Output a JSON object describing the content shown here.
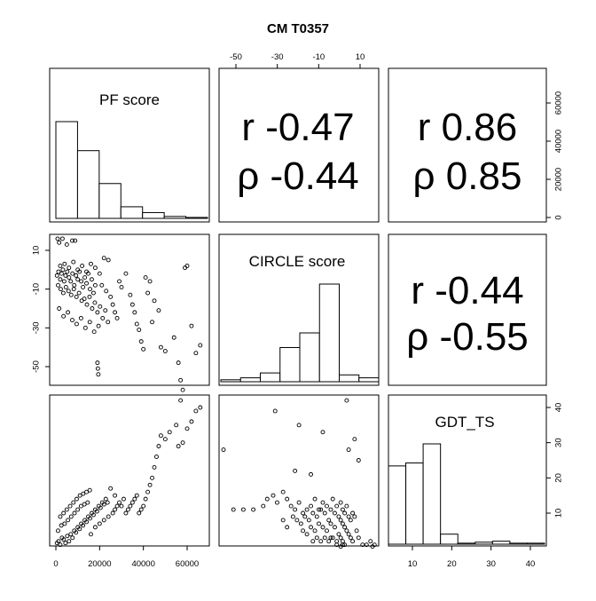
{
  "title": "CM T0357",
  "chart_data": {
    "type": "scatter-matrix",
    "title": "CM T0357",
    "variables": [
      "PF score",
      "CIRCLE score",
      "GDT_TS"
    ],
    "ticks": {
      "pf": [
        0,
        20000,
        40000,
        60000
      ],
      "circle": [
        -50,
        -30,
        -10,
        10
      ],
      "gdt": [
        10,
        20,
        30,
        40
      ]
    },
    "tick_labels": {
      "pf": [
        "0",
        "20000",
        "40000",
        "60000"
      ],
      "circle_top": [
        "-50",
        "-30",
        "-10",
        "10"
      ],
      "circle_left": [
        "10",
        "-10",
        "-30",
        "-50"
      ],
      "gdt_right": [
        "10",
        "20",
        "30",
        "40"
      ],
      "gdt_bottom": [
        "10",
        "20",
        "30",
        "40"
      ],
      "pf_right": [
        "0",
        "20000",
        "40000",
        "60000"
      ]
    },
    "correlations": [
      {
        "pair": "PF score / CIRCLE score",
        "r_text": "r -0.47",
        "rho_text": "ρ -0.44"
      },
      {
        "pair": "PF score / GDT_TS",
        "r_text": "r 0.86",
        "rho_text": "ρ 0.85"
      },
      {
        "pair": "CIRCLE score / GDT_TS",
        "r_text": "r -0.44",
        "rho_text": "ρ -0.55"
      }
    ],
    "histograms": {
      "pf": {
        "edges": [
          0,
          10000,
          20000,
          30000,
          40000,
          50000,
          60000,
          70000
        ],
        "heights": [
          1.0,
          0.7,
          0.36,
          0.12,
          0.06,
          0.02,
          0.01
        ]
      },
      "circle": {
        "edges": [
          -60,
          -50,
          -40,
          -30,
          -20,
          -10,
          0,
          10,
          20
        ],
        "heights": [
          0.02,
          0.04,
          0.09,
          0.35,
          0.5,
          1.0,
          0.07,
          0.04
        ]
      },
      "gdt": {
        "edges": [
          0,
          5,
          10,
          15,
          20,
          25,
          30,
          35,
          40,
          45
        ],
        "heights": [
          0.78,
          0.81,
          1.0,
          0.1,
          0.01,
          0.02,
          0.03,
          0.01,
          0.01
        ]
      }
    },
    "points_pf_circle": [
      [
        800,
        16
      ],
      [
        3000,
        16
      ],
      [
        7500,
        15
      ],
      [
        8800,
        15
      ],
      [
        1500,
        14
      ],
      [
        5000,
        13
      ],
      [
        500,
        -3
      ],
      [
        1200,
        -1
      ],
      [
        2000,
        -5
      ],
      [
        2600,
        -2
      ],
      [
        3200,
        0
      ],
      [
        3800,
        -6
      ],
      [
        4400,
        -3
      ],
      [
        5200,
        -1
      ],
      [
        6000,
        -4
      ],
      [
        6800,
        -6
      ],
      [
        7600,
        -2
      ],
      [
        8400,
        -8
      ],
      [
        9200,
        -3
      ],
      [
        10000,
        -5
      ],
      [
        10800,
        -1
      ],
      [
        11600,
        -6
      ],
      [
        12400,
        -9
      ],
      [
        13200,
        -4
      ],
      [
        14000,
        -7
      ],
      [
        14800,
        -2
      ],
      [
        15600,
        -10
      ],
      [
        16400,
        -5
      ],
      [
        17200,
        -12
      ],
      [
        18000,
        -8
      ],
      [
        1000,
        -8
      ],
      [
        2200,
        -10
      ],
      [
        3400,
        -12
      ],
      [
        4600,
        -9
      ],
      [
        5800,
        -11
      ],
      [
        7000,
        -13
      ],
      [
        8200,
        -10
      ],
      [
        9400,
        -14
      ],
      [
        10600,
        -12
      ],
      [
        11800,
        -16
      ],
      [
        13000,
        -15
      ],
      [
        14200,
        -18
      ],
      [
        15400,
        -14
      ],
      [
        16600,
        -20
      ],
      [
        17800,
        -17
      ],
      [
        19000,
        -22
      ],
      [
        20200,
        -19
      ],
      [
        21400,
        -25
      ],
      [
        22600,
        -21
      ],
      [
        23800,
        -27
      ],
      [
        1500,
        -20
      ],
      [
        3500,
        -24
      ],
      [
        5500,
        -22
      ],
      [
        7500,
        -26
      ],
      [
        9500,
        -28
      ],
      [
        11500,
        -25
      ],
      [
        13500,
        -30
      ],
      [
        15500,
        -27
      ],
      [
        17500,
        -32
      ],
      [
        19500,
        -29
      ],
      [
        2000,
        2
      ],
      [
        4000,
        3
      ],
      [
        6000,
        1
      ],
      [
        8000,
        4
      ],
      [
        10000,
        0
      ],
      [
        12000,
        2
      ],
      [
        14000,
        -1
      ],
      [
        16000,
        3
      ],
      [
        18000,
        1
      ],
      [
        20000,
        -2
      ],
      [
        22000,
        6
      ],
      [
        24000,
        5
      ],
      [
        21000,
        -8
      ],
      [
        23000,
        -11
      ],
      [
        25000,
        -14
      ],
      [
        26000,
        -18
      ],
      [
        27000,
        -22
      ],
      [
        28000,
        -25
      ],
      [
        29000,
        -6
      ],
      [
        30000,
        -9
      ],
      [
        19000,
        -48
      ],
      [
        19200,
        -51
      ],
      [
        19400,
        -54
      ],
      [
        32000,
        -2
      ],
      [
        34000,
        -13
      ],
      [
        35000,
        -18
      ],
      [
        36000,
        -22
      ],
      [
        37000,
        -28
      ],
      [
        38000,
        -31
      ],
      [
        39000,
        -37
      ],
      [
        40000,
        -41
      ],
      [
        41000,
        -4
      ],
      [
        42000,
        -12
      ],
      [
        43000,
        -6
      ],
      [
        44000,
        -27
      ],
      [
        45000,
        -16
      ],
      [
        47000,
        -21
      ],
      [
        48000,
        -40
      ],
      [
        50000,
        -42
      ],
      [
        54000,
        -35
      ],
      [
        56000,
        -48
      ],
      [
        57000,
        -57
      ],
      [
        58000,
        -62
      ],
      [
        59000,
        1
      ],
      [
        60000,
        2
      ],
      [
        62000,
        -29
      ],
      [
        64000,
        -43
      ],
      [
        66000,
        -39
      ]
    ],
    "points_pf_gdt": [
      [
        500,
        1.5
      ],
      [
        1200,
        2
      ],
      [
        2000,
        1
      ],
      [
        2800,
        3
      ],
      [
        3600,
        2.5
      ],
      [
        4400,
        1.5
      ],
      [
        5200,
        3.5
      ],
      [
        6000,
        2
      ],
      [
        6800,
        4
      ],
      [
        7600,
        3
      ],
      [
        8400,
        5
      ],
      [
        9200,
        4.5
      ],
      [
        10000,
        6
      ],
      [
        10800,
        5.5
      ],
      [
        11600,
        7
      ],
      [
        12400,
        6.5
      ],
      [
        13200,
        8
      ],
      [
        14000,
        7.5
      ],
      [
        14800,
        9
      ],
      [
        15600,
        8.5
      ],
      [
        16400,
        10
      ],
      [
        17200,
        9.5
      ],
      [
        18000,
        11
      ],
      [
        18800,
        10.5
      ],
      [
        19600,
        12
      ],
      [
        20400,
        11.5
      ],
      [
        21200,
        13
      ],
      [
        22000,
        12.5
      ],
      [
        22800,
        14
      ],
      [
        23600,
        13
      ],
      [
        1000,
        5
      ],
      [
        2500,
        6.5
      ],
      [
        4000,
        7
      ],
      [
        5500,
        8
      ],
      [
        7000,
        9
      ],
      [
        8500,
        10
      ],
      [
        10000,
        11
      ],
      [
        11500,
        12
      ],
      [
        13000,
        12.5
      ],
      [
        14500,
        13
      ],
      [
        2000,
        9
      ],
      [
        3500,
        10
      ],
      [
        5000,
        11
      ],
      [
        6500,
        12
      ],
      [
        8000,
        13
      ],
      [
        9500,
        14
      ],
      [
        11000,
        15
      ],
      [
        12500,
        15.5
      ],
      [
        14000,
        16
      ],
      [
        15500,
        16.5
      ],
      [
        16000,
        4
      ],
      [
        18000,
        6
      ],
      [
        20000,
        7
      ],
      [
        22000,
        8
      ],
      [
        24000,
        9
      ],
      [
        26000,
        10
      ],
      [
        27000,
        11
      ],
      [
        28000,
        12
      ],
      [
        29000,
        13
      ],
      [
        30000,
        12
      ],
      [
        31000,
        14
      ],
      [
        32000,
        10
      ],
      [
        33000,
        11
      ],
      [
        34000,
        12
      ],
      [
        35000,
        13
      ],
      [
        36000,
        14
      ],
      [
        37000,
        15
      ],
      [
        38000,
        10
      ],
      [
        39000,
        11
      ],
      [
        40000,
        12
      ],
      [
        41000,
        14
      ],
      [
        42000,
        16
      ],
      [
        43000,
        18
      ],
      [
        44000,
        20
      ],
      [
        45000,
        23
      ],
      [
        46000,
        26
      ],
      [
        47000,
        29
      ],
      [
        48000,
        32
      ],
      [
        50000,
        31
      ],
      [
        52000,
        33
      ],
      [
        55000,
        35
      ],
      [
        56000,
        29
      ],
      [
        57000,
        42
      ],
      [
        58000,
        30
      ],
      [
        62000,
        36
      ],
      [
        64000,
        39
      ],
      [
        66000,
        40
      ],
      [
        60000,
        34
      ],
      [
        25000,
        17
      ],
      [
        27000,
        15
      ]
    ],
    "points_circle_gdt": [
      [
        -60,
        28
      ],
      [
        -55,
        11
      ],
      [
        -50,
        11
      ],
      [
        -45,
        11
      ],
      [
        -40,
        12
      ],
      [
        -38,
        14
      ],
      [
        -35,
        15
      ],
      [
        -33,
        13
      ],
      [
        -30,
        16
      ],
      [
        -28,
        14
      ],
      [
        -26,
        12
      ],
      [
        -24,
        11
      ],
      [
        -22,
        13
      ],
      [
        -20,
        10
      ],
      [
        -18,
        11
      ],
      [
        -16,
        12
      ],
      [
        -14,
        14
      ],
      [
        -12,
        11
      ],
      [
        -10,
        13
      ],
      [
        -8,
        12
      ],
      [
        -25,
        9
      ],
      [
        -23,
        8
      ],
      [
        -21,
        7
      ],
      [
        -19,
        9
      ],
      [
        -17,
        8
      ],
      [
        -15,
        10
      ],
      [
        -13,
        9
      ],
      [
        -11,
        11
      ],
      [
        -9,
        10
      ],
      [
        -7,
        8
      ],
      [
        -20,
        5
      ],
      [
        -18,
        4
      ],
      [
        -16,
        6
      ],
      [
        -14,
        5
      ],
      [
        -12,
        7
      ],
      [
        -10,
        6
      ],
      [
        -8,
        5
      ],
      [
        -6,
        7
      ],
      [
        -4,
        6
      ],
      [
        -2,
        4
      ],
      [
        -15,
        2
      ],
      [
        -13,
        3
      ],
      [
        -11,
        2
      ],
      [
        -9,
        3
      ],
      [
        -7,
        2
      ],
      [
        -5,
        3
      ],
      [
        -3,
        2
      ],
      [
        -1,
        3
      ],
      [
        0,
        2
      ],
      [
        1,
        1
      ],
      [
        -5,
        14
      ],
      [
        -3,
        12
      ],
      [
        -1,
        13
      ],
      [
        0,
        11
      ],
      [
        1,
        10
      ],
      [
        2,
        12
      ],
      [
        3,
        9
      ],
      [
        4,
        8
      ],
      [
        5,
        10
      ],
      [
        6,
        9
      ],
      [
        -6,
        11
      ],
      [
        -4,
        10
      ],
      [
        -2,
        9
      ],
      [
        -1,
        8
      ],
      [
        0,
        7
      ],
      [
        1,
        6
      ],
      [
        2,
        5
      ],
      [
        3,
        4
      ],
      [
        4,
        3
      ],
      [
        5,
        2
      ],
      [
        -34,
        39
      ],
      [
        -22,
        35
      ],
      [
        -10,
        33
      ],
      [
        -24,
        22
      ],
      [
        -16,
        21
      ],
      [
        2,
        42
      ],
      [
        3,
        28
      ],
      [
        6,
        31
      ],
      [
        8,
        25
      ],
      [
        -30,
        8
      ],
      [
        -28,
        6
      ],
      [
        -6,
        3
      ],
      [
        -3,
        1
      ],
      [
        -1,
        0.5
      ],
      [
        0,
        1
      ],
      [
        7,
        5
      ],
      [
        8,
        3
      ],
      [
        10,
        1
      ],
      [
        12,
        1
      ],
      [
        14,
        2
      ],
      [
        16,
        1
      ],
      [
        15,
        0.5
      ]
    ]
  }
}
